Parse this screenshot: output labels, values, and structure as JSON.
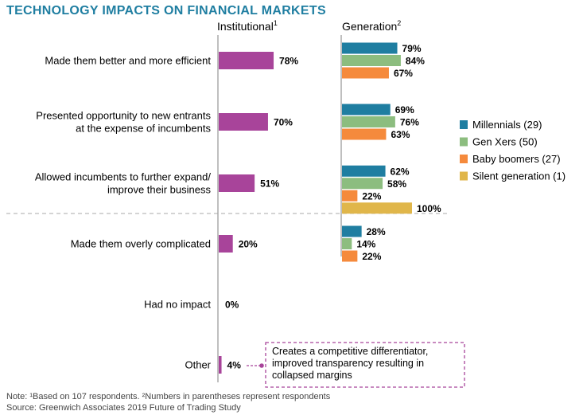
{
  "chart_data": {
    "type": "bar",
    "title": "TECHNOLOGY IMPACTS ON FINANCIAL MARKETS",
    "categories": [
      [
        "Made them better and more efficient"
      ],
      [
        "Presented opportunity to new entrants",
        "at the expense of incumbents"
      ],
      [
        "Allowed incumbents to further expand/",
        "improve their business"
      ],
      [
        "Made them overly complicated"
      ],
      [
        "Had no impact"
      ],
      [
        "Other"
      ]
    ],
    "institutional": {
      "header": "Institutional",
      "header_sup": "1",
      "color": "#a8449a",
      "values": [
        78,
        70,
        51,
        20,
        0,
        4
      ]
    },
    "generation": {
      "header": "Generation",
      "header_sup": "2",
      "series": [
        {
          "name": "Millennials (29)",
          "color": "#1f7ea1",
          "values": [
            79,
            69,
            62,
            28,
            null,
            null
          ]
        },
        {
          "name": "Gen Xers (50)",
          "color": "#8cbd7f",
          "values": [
            84,
            76,
            58,
            14,
            null,
            null
          ]
        },
        {
          "name": "Baby boomers (27)",
          "color": "#f58a3c",
          "values": [
            67,
            63,
            22,
            22,
            null,
            null
          ]
        },
        {
          "name": "Silent generation (1)",
          "color": "#e0b64a",
          "values": [
            null,
            null,
            100,
            null,
            null,
            null
          ]
        }
      ]
    },
    "value_suffix": "%",
    "annotation": {
      "lines": [
        "Creates a competitive differentiator,",
        "improved transparency resulting in",
        "collapsed margins"
      ],
      "color": "#a8449a"
    },
    "notes": [
      "Note: ¹Based on 107 respondents. ²Numbers in parentheses represent respondents",
      "Source: Greenwich Associates 2019 Future of Trading Study"
    ],
    "colors": {
      "title": "#1f7ea1",
      "axis": "#aaaaaa",
      "divider": "#aaaaaa"
    }
  }
}
